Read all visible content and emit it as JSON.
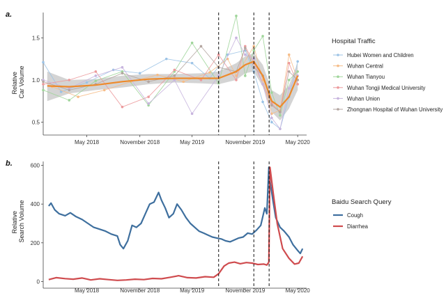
{
  "chart_data": [
    {
      "panel": "a.",
      "type": "line",
      "title": "",
      "xlabel": "",
      "ylabel": "Relative\nCar Volume",
      "x_ticks": [
        "May 2018",
        "November 2018",
        "May 2019",
        "November 2019",
        "May 2020"
      ],
      "y_ticks": [
        0.5,
        1.0,
        1.5
      ],
      "ylim": [
        0.38,
        1.8
      ],
      "x_range": [
        "2017-12",
        "2020-06"
      ],
      "vlines": [
        "2019-08",
        "2019-12",
        "2020-01-23"
      ],
      "legend_title": "Hospital Traffic",
      "legend_position": "right",
      "trend": {
        "color": "#ee8a2a",
        "x": [
          "2017-12-15",
          "2018-03",
          "2018-06",
          "2018-09",
          "2018-12",
          "2019-03",
          "2019-06",
          "2019-08",
          "2019-10",
          "2019-11",
          "2019-12",
          "2020-01",
          "2020-02",
          "2020-03",
          "2020-04",
          "2020-05"
        ],
        "y": [
          0.93,
          0.92,
          0.94,
          0.98,
          1.01,
          1.02,
          1.02,
          1.02,
          1.1,
          1.18,
          1.22,
          1.05,
          0.75,
          0.68,
          0.8,
          1.05
        ],
        "band_lower": [
          0.75,
          0.84,
          0.88,
          0.91,
          0.95,
          0.97,
          0.96,
          0.95,
          1.0,
          1.08,
          1.1,
          0.92,
          0.62,
          0.52,
          0.66,
          0.88
        ],
        "band_upper": [
          1.1,
          1.0,
          1.01,
          1.05,
          1.07,
          1.07,
          1.08,
          1.1,
          1.2,
          1.28,
          1.32,
          1.18,
          0.88,
          0.82,
          0.94,
          1.2
        ]
      },
      "series": [
        {
          "name": "Hubei Women and Children",
          "color": "#9cc3e6",
          "x": [
            "2017-12",
            "2018-02",
            "2018-05",
            "2018-08",
            "2018-11",
            "2019-02",
            "2019-05",
            "2019-07",
            "2019-09",
            "2019-11",
            "2019-12",
            "2020-01",
            "2020-02",
            "2020-03",
            "2020-04",
            "2020-05"
          ],
          "y": [
            1.21,
            0.86,
            0.97,
            1.12,
            1.08,
            1.25,
            1.2,
            1.02,
            1.3,
            1.35,
            1.1,
            0.74,
            0.5,
            0.42,
            0.8,
            1.22
          ]
        },
        {
          "name": "Wuhan Central",
          "color": "#f6bd88",
          "x": [
            "2018-01",
            "2018-04",
            "2018-07",
            "2018-10",
            "2019-01",
            "2019-04",
            "2019-07",
            "2019-09",
            "2019-10",
            "2019-12",
            "2020-01",
            "2020-02",
            "2020-03",
            "2020-04",
            "2020-05"
          ],
          "y": [
            0.92,
            0.8,
            0.88,
            0.98,
            1.06,
            0.98,
            1.09,
            1.25,
            1.05,
            1.4,
            1.0,
            0.6,
            0.64,
            1.3,
            1.0
          ]
        },
        {
          "name": "Wuhan Tianyou",
          "color": "#9fd59a",
          "x": [
            "2017-12",
            "2018-03",
            "2018-06",
            "2018-09",
            "2018-12",
            "2019-03",
            "2019-05",
            "2019-08",
            "2019-10",
            "2019-11",
            "2019-12",
            "2020-01",
            "2020-02",
            "2020-03",
            "2020-04",
            "2020-05"
          ],
          "y": [
            0.88,
            0.76,
            0.99,
            1.1,
            0.7,
            1.1,
            1.44,
            0.96,
            1.76,
            1.05,
            1.35,
            1.52,
            0.85,
            0.58,
            1.0,
            1.1
          ]
        },
        {
          "name": "Wuhan Tongji Medical University",
          "color": "#ec9a9c",
          "x": [
            "2017-12",
            "2018-03",
            "2018-06",
            "2018-09",
            "2018-12",
            "2019-03",
            "2019-06",
            "2019-08",
            "2019-10",
            "2019-11",
            "2019-12",
            "2020-01",
            "2020-02",
            "2020-03",
            "2020-04",
            "2020-05"
          ],
          "y": [
            0.95,
            1.0,
            1.1,
            0.68,
            0.8,
            1.12,
            1.0,
            1.3,
            1.0,
            1.4,
            1.2,
            0.95,
            0.72,
            0.62,
            1.2,
            0.95
          ]
        },
        {
          "name": "Wuhan Union",
          "color": "#c7b4de",
          "x": [
            "2017-12",
            "2018-03",
            "2018-06",
            "2018-09",
            "2018-12",
            "2019-03",
            "2019-05",
            "2019-08",
            "2019-10",
            "2019-11",
            "2019-12",
            "2020-01",
            "2020-02",
            "2020-03",
            "2020-04",
            "2020-05"
          ],
          "y": [
            1.0,
            0.9,
            1.05,
            1.15,
            0.72,
            1.0,
            0.6,
            1.05,
            1.5,
            1.3,
            1.25,
            0.95,
            0.55,
            0.42,
            0.9,
            1.05
          ]
        },
        {
          "name": "Zhongnan Hospital of Wuhan University",
          "color": "#b3a5a0",
          "x": [
            "2017-12",
            "2018-03",
            "2018-06",
            "2018-09",
            "2018-12",
            "2019-03",
            "2019-06",
            "2019-08",
            "2019-10",
            "2019-11",
            "2019-12",
            "2020-01",
            "2020-02",
            "2020-03",
            "2020-04",
            "2020-05"
          ],
          "y": [
            0.98,
            0.88,
            0.95,
            1.08,
            0.98,
            1.05,
            1.4,
            1.15,
            1.1,
            1.38,
            1.15,
            1.05,
            0.7,
            0.62,
            1.1,
            1.0
          ]
        }
      ]
    },
    {
      "panel": "b.",
      "type": "line",
      "title": "",
      "xlabel": "",
      "ylabel": "Relative\nSearch Volume",
      "x_ticks": [
        "May 2018",
        "November 2018",
        "May 2019",
        "November 2019",
        "May 2020"
      ],
      "y_ticks": [
        0,
        200,
        400,
        600
      ],
      "ylim": [
        -20,
        620
      ],
      "x_range": [
        "2017-12",
        "2020-06"
      ],
      "vlines": [
        "2019-08",
        "2019-12",
        "2020-01-23"
      ],
      "legend_title": "Baidu Search Query",
      "legend_position": "right",
      "series": [
        {
          "name": "Cough",
          "color": "#3e6f9e",
          "x": [
            "2017-12-20",
            "2017-12-28",
            "2018-01-10",
            "2018-01-25",
            "2018-02-15",
            "2018-03-05",
            "2018-03-25",
            "2018-04-15",
            "2018-05-05",
            "2018-05-25",
            "2018-06-15",
            "2018-07-05",
            "2018-07-25",
            "2018-08-15",
            "2018-08-25",
            "2018-09-05",
            "2018-09-20",
            "2018-10-05",
            "2018-10-20",
            "2018-11-05",
            "2018-11-20",
            "2018-12-05",
            "2018-12-20",
            "2019-01-05",
            "2019-01-15",
            "2019-01-28",
            "2019-02-10",
            "2019-02-25",
            "2019-03-10",
            "2019-03-25",
            "2019-04-10",
            "2019-04-25",
            "2019-05-10",
            "2019-05-25",
            "2019-06-10",
            "2019-06-25",
            "2019-07-10",
            "2019-07-25",
            "2019-08-10",
            "2019-08-25",
            "2019-09-10",
            "2019-09-25",
            "2019-10-10",
            "2019-10-25",
            "2019-11-10",
            "2019-11-25",
            "2019-12-10",
            "2019-12-25",
            "2020-01-08",
            "2020-01-15",
            "2020-01-22",
            "2020-01-26",
            "2020-02-05",
            "2020-02-15",
            "2020-03-01",
            "2020-03-15",
            "2020-04-01",
            "2020-04-15",
            "2020-05-01",
            "2020-05-10",
            "2020-05-18"
          ],
          "y": [
            390,
            405,
            370,
            350,
            340,
            355,
            335,
            320,
            300,
            280,
            270,
            260,
            245,
            235,
            190,
            170,
            210,
            290,
            280,
            300,
            350,
            400,
            410,
            460,
            420,
            380,
            330,
            350,
            400,
            370,
            330,
            300,
            280,
            260,
            250,
            240,
            230,
            225,
            220,
            210,
            205,
            215,
            225,
            230,
            250,
            245,
            265,
            290,
            380,
            350,
            590,
            520,
            420,
            330,
            280,
            260,
            230,
            190,
            160,
            145,
            170
          ]
        },
        {
          "name": "Diarrhea",
          "color": "#cf4b4e",
          "x": [
            "2017-12-20",
            "2018-01-15",
            "2018-02-15",
            "2018-03-15",
            "2018-04-15",
            "2018-05-15",
            "2018-06-15",
            "2018-07-15",
            "2018-08-15",
            "2018-09-15",
            "2018-10-15",
            "2018-11-15",
            "2018-12-15",
            "2019-01-15",
            "2019-02-15",
            "2019-03-15",
            "2019-04-15",
            "2019-05-15",
            "2019-06-15",
            "2019-07-15",
            "2019-08-01",
            "2019-08-20",
            "2019-09-05",
            "2019-09-25",
            "2019-10-15",
            "2019-11-05",
            "2019-11-25",
            "2019-12-15",
            "2020-01-05",
            "2020-01-15",
            "2020-01-22",
            "2020-01-26",
            "2020-02-05",
            "2020-02-20",
            "2020-03-10",
            "2020-04-01",
            "2020-04-20",
            "2020-05-05",
            "2020-05-18"
          ],
          "y": [
            10,
            20,
            15,
            12,
            18,
            8,
            14,
            10,
            6,
            8,
            12,
            10,
            16,
            14,
            22,
            30,
            20,
            18,
            25,
            22,
            40,
            80,
            95,
            100,
            92,
            98,
            95,
            88,
            90,
            85,
            100,
            590,
            470,
            300,
            170,
            120,
            90,
            95,
            130
          ]
        }
      ]
    }
  ]
}
